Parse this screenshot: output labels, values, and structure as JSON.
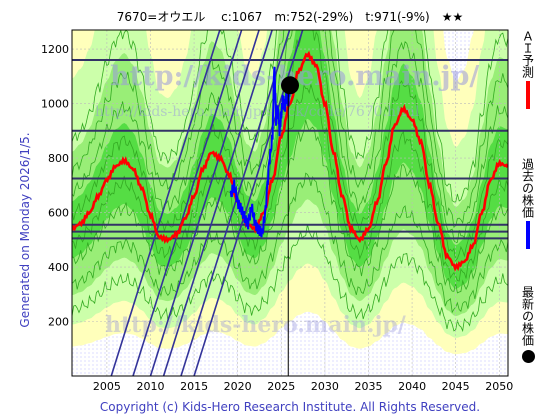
{
  "title": "7670=オウエル　 c:1067　m:752(-29%)　t:971(-9%)　★★",
  "generated": "Generated on Monday 2026/1/5.",
  "copyright": "Copyright (c) Kids-Hero Research Institute. All Rights Reserved.",
  "watermark": {
    "url_large": "http://kids-hero.main.jp/",
    "url_small": "http://kids-hero.main.jp/stock/code/7670.html"
  },
  "legend": [
    {
      "label": "ＡＩ予測",
      "color": "#ff0000"
    },
    {
      "label": "過去の株価",
      "color": "#0000ff"
    },
    {
      "label": "最新の株価",
      "color": "#000000"
    }
  ],
  "colors": {
    "band_light": "#ccffaa",
    "band_mid": "#99ee77",
    "band_dark": "#55dd44",
    "band_green_line": "#33aa22",
    "yellow_bg": "#ffffbb",
    "blue_bg": "#eeeeff",
    "hline": "#333366",
    "diagonal": "#333399"
  },
  "chart_data": {
    "type": "line",
    "xlim": [
      2001,
      2051
    ],
    "ylim": [
      0,
      1270
    ],
    "xticks": [
      2005,
      2010,
      2015,
      2020,
      2025,
      2030,
      2035,
      2040,
      2045,
      2050
    ],
    "yticks": [
      200,
      400,
      600,
      800,
      1000,
      1200
    ],
    "grid": true,
    "current": {
      "x": 2026.0,
      "y": 1067
    },
    "vline_x": 2025.8,
    "hlines": [
      1160,
      900,
      725,
      555,
      530,
      505
    ],
    "diagonals": [
      {
        "x": 2005.5,
        "y": 0,
        "slope": 102
      },
      {
        "x": 2008.0,
        "y": 0,
        "slope": 102
      },
      {
        "x": 2010.0,
        "y": 0,
        "slope": 102
      },
      {
        "x": 2011.5,
        "y": 0,
        "slope": 102
      },
      {
        "x": 2013.5,
        "y": 0,
        "slope": 102
      },
      {
        "x": 2015.0,
        "y": 0,
        "slope": 102
      }
    ],
    "series": [
      {
        "type": "ai_forecast",
        "color": "#ff0000",
        "x": [
          2001,
          2002,
          2003,
          2004,
          2005,
          2006,
          2007,
          2008,
          2009,
          2010,
          2011,
          2012,
          2013,
          2014,
          2015,
          2016,
          2017,
          2018,
          2019,
          2020,
          2021,
          2022,
          2023,
          2024,
          2025,
          2026,
          2027,
          2028,
          2029,
          2030,
          2031,
          2032,
          2033,
          2034,
          2035,
          2036,
          2037,
          2038,
          2039,
          2040,
          2041,
          2042,
          2043,
          2044,
          2045,
          2046,
          2047,
          2048,
          2049,
          2050,
          2051
        ],
        "y": [
          540,
          560,
          600,
          660,
          720,
          770,
          790,
          760,
          690,
          590,
          510,
          500,
          520,
          580,
          660,
          760,
          820,
          800,
          740,
          640,
          560,
          540,
          600,
          720,
          880,
          1000,
          1120,
          1180,
          1140,
          1000,
          820,
          660,
          540,
          500,
          540,
          640,
          780,
          920,
          980,
          940,
          860,
          700,
          560,
          440,
          400,
          420,
          480,
          600,
          720,
          780,
          770
        ]
      },
      {
        "type": "past_price",
        "color": "#0000ff",
        "x": [
          2019.2,
          2019.6,
          2020.0,
          2020.4,
          2020.8,
          2021.2,
          2021.6,
          2022.0,
          2022.4,
          2022.8,
          2023.2,
          2023.6,
          2024.0,
          2024.2,
          2024.4,
          2024.6,
          2024.8,
          2025.0,
          2025.2,
          2025.4,
          2025.6,
          2025.8,
          2026.0
        ],
        "y": [
          660,
          700,
          640,
          610,
          580,
          560,
          620,
          560,
          540,
          520,
          610,
          780,
          880,
          1150,
          940,
          990,
          900,
          960,
          1020,
          980,
          1040,
          1000,
          1067
        ]
      }
    ]
  }
}
